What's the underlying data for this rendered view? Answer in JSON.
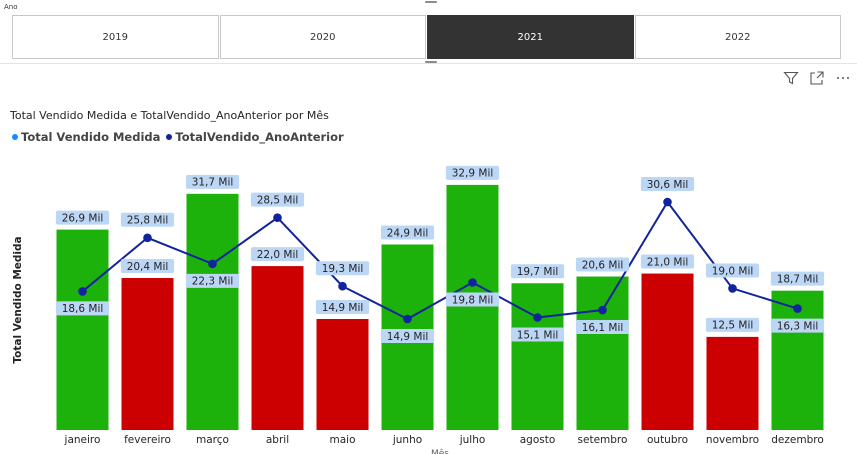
{
  "slicer": {
    "label": "Ano",
    "years": [
      "2019",
      "2020",
      "2021",
      "2022"
    ],
    "selected": "2021"
  },
  "toolbar": {
    "icons": [
      "filter-icon",
      "focus-mode-icon",
      "more-options-icon"
    ]
  },
  "colors": {
    "bar_above": "#1db20b",
    "bar_below": "#cc0000",
    "line": "#12239e",
    "label_bg": "#bcd6f5",
    "legend_bar": "#118dff",
    "legend_line": "#12239e"
  },
  "chart_data": {
    "type": "bar",
    "title": "Total Vendido Medida e TotalVendido_AnoAnterior por Mês",
    "xlabel": "Mês",
    "ylabel": "Total Vendido Medida",
    "ylim": [
      0,
      35
    ],
    "grid": false,
    "legend_position": "top-left",
    "categories": [
      "janeiro",
      "fevereiro",
      "março",
      "abril",
      "maio",
      "junho",
      "julho",
      "agosto",
      "setembro",
      "outubro",
      "novembro",
      "dezembro"
    ],
    "series": [
      {
        "name": "Total Vendido Medida",
        "type": "bar",
        "values": [
          26.9,
          20.4,
          31.7,
          22.0,
          14.9,
          24.9,
          32.9,
          19.7,
          20.6,
          21.0,
          12.5,
          18.7
        ],
        "labels": [
          "26,9 Mil",
          "20,4 Mil",
          "31,7 Mil",
          "22,0 Mil",
          "14,9 Mil",
          "24,9 Mil",
          "32,9 Mil",
          "19,7 Mil",
          "20,6 Mil",
          "21,0 Mil",
          "12,5 Mil",
          "18,7 Mil"
        ]
      },
      {
        "name": "TotalVendido_AnoAnterior",
        "type": "line",
        "values": [
          18.6,
          25.8,
          22.3,
          28.5,
          19.3,
          14.9,
          19.8,
          15.1,
          16.1,
          30.6,
          19.0,
          16.3
        ],
        "labels": [
          "18,6 Mil",
          "25,8 Mil",
          "22,3 Mil",
          "28,5 Mil",
          "19,3 Mil",
          "14,9 Mil",
          "19,8 Mil",
          "15,1 Mil",
          "16,1 Mil",
          "30,6 Mil",
          "19,0 Mil",
          "16,3 Mil"
        ]
      }
    ]
  }
}
